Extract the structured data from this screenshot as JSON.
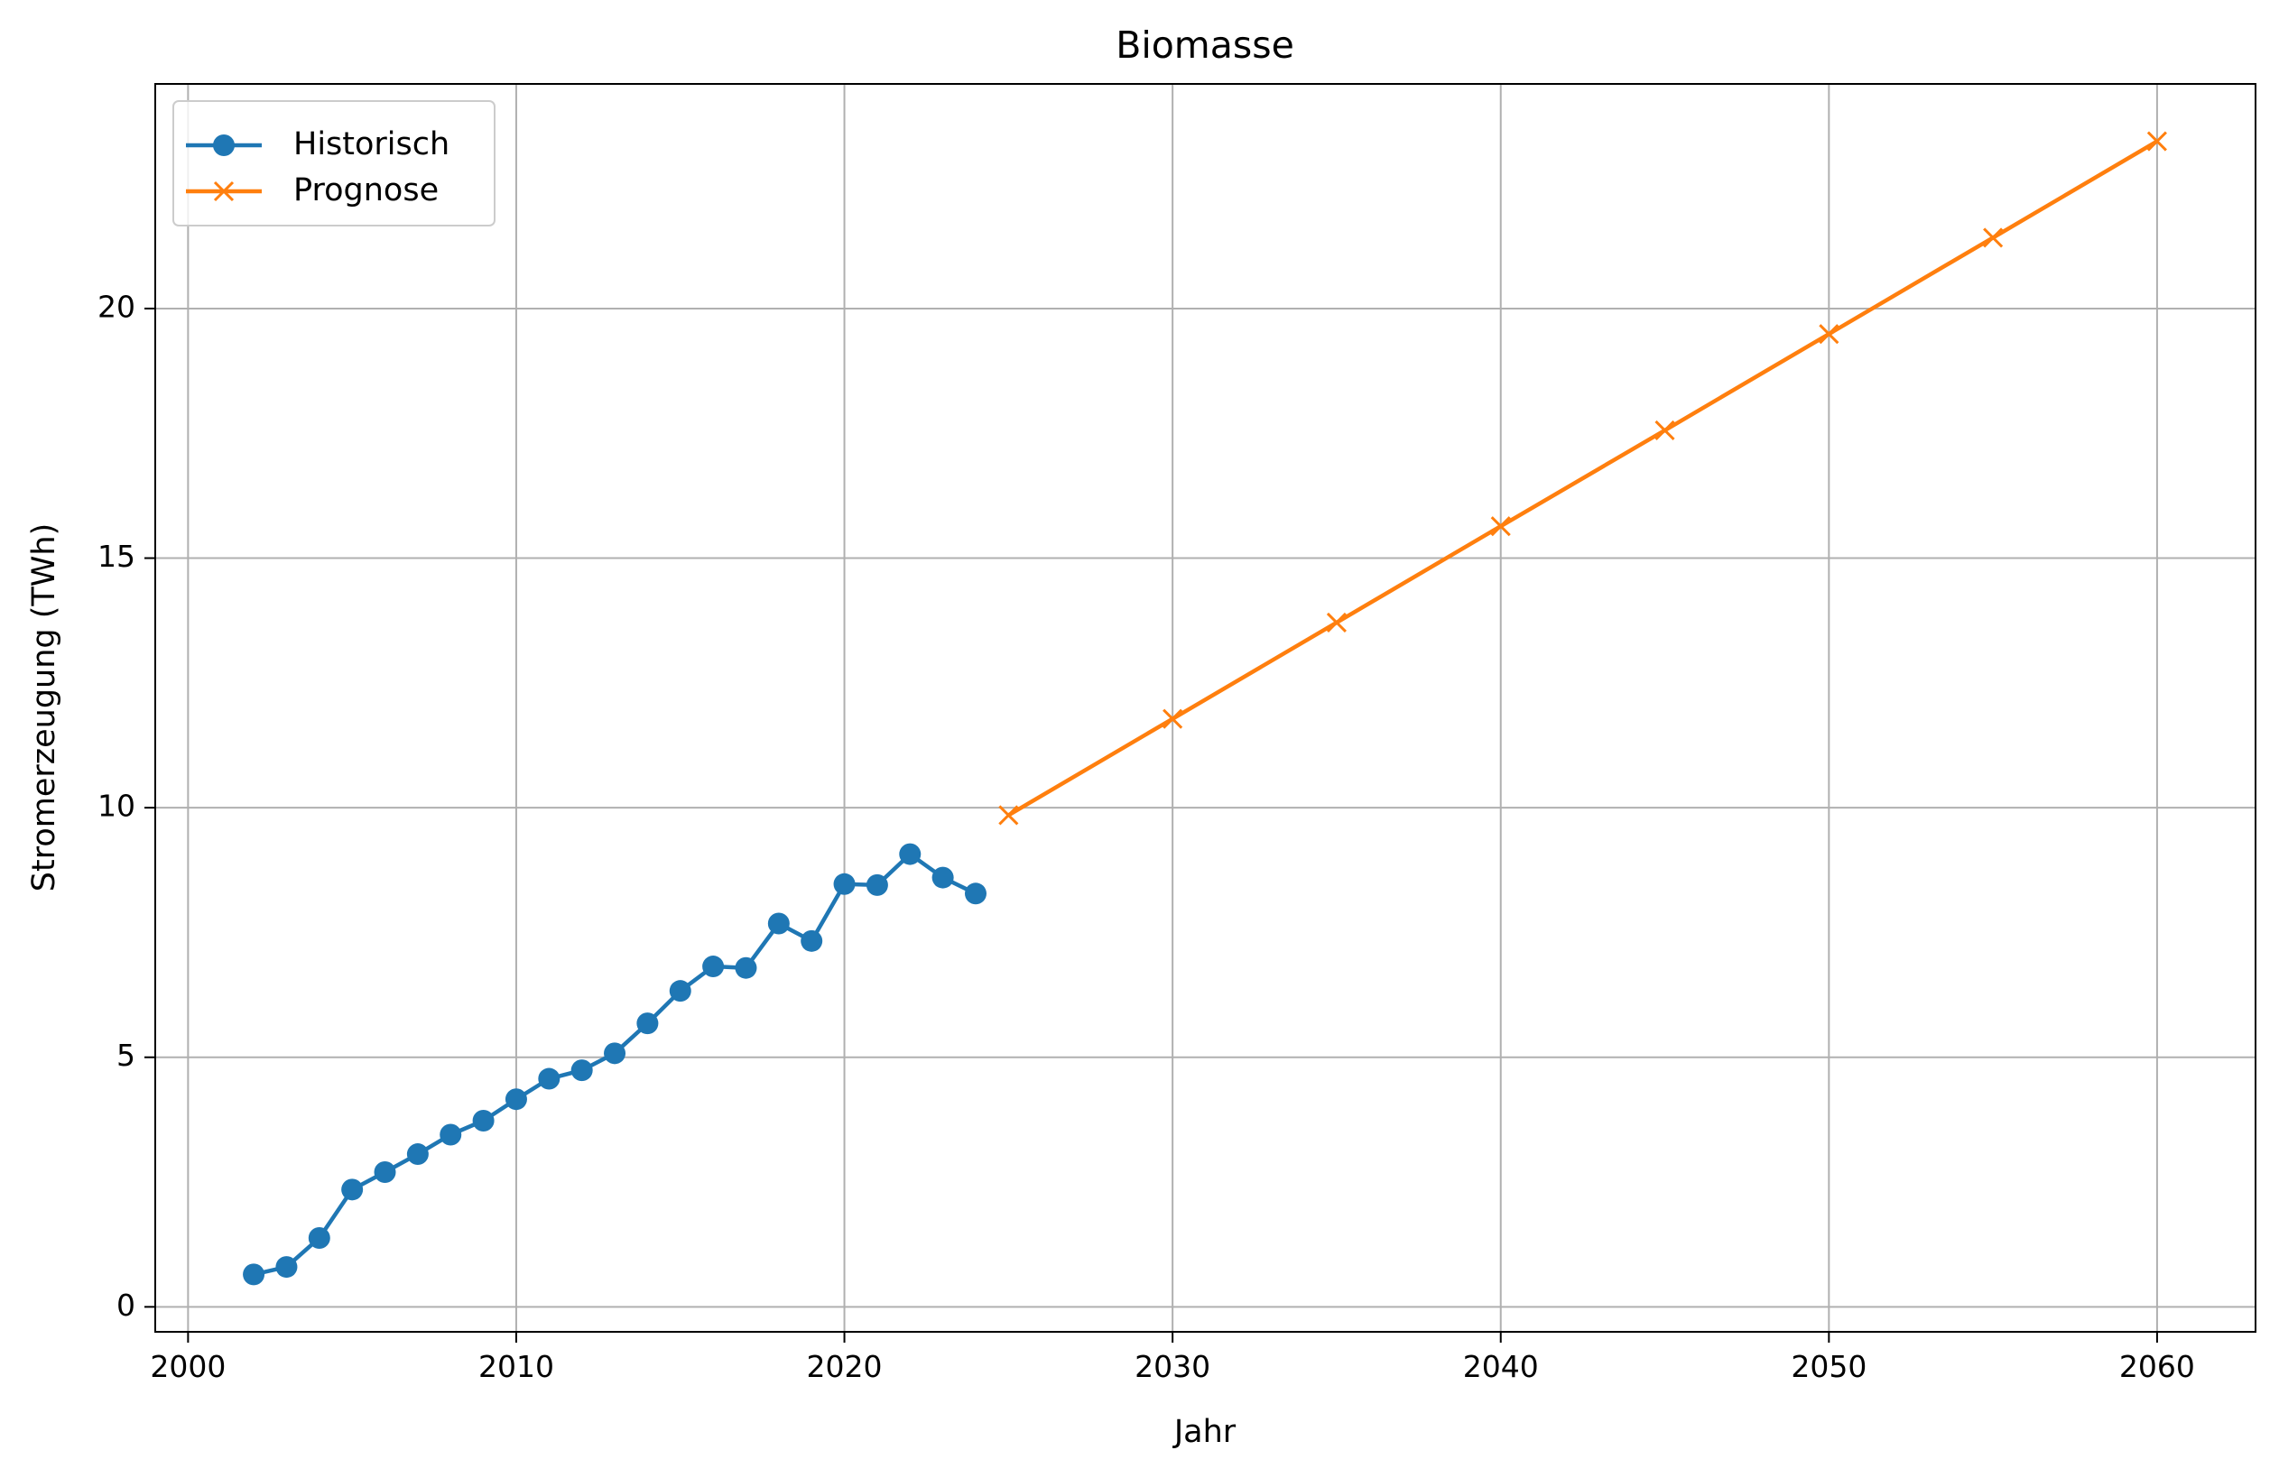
{
  "chart_data": {
    "type": "line",
    "title": "Biomasse",
    "xlabel": "Jahr",
    "ylabel": "Stromerzeugung (TWh)",
    "xlim": [
      1999,
      2063
    ],
    "ylim": [
      -0.5,
      24.5
    ],
    "xticks": [
      2000,
      2010,
      2020,
      2030,
      2040,
      2050,
      2060
    ],
    "yticks": [
      0,
      5,
      10,
      15,
      20
    ],
    "grid": true,
    "legend_position": "top-left",
    "series": [
      {
        "name": "Historisch",
        "color": "#1f77b4",
        "marker": "circle",
        "x": [
          2002,
          2003,
          2004,
          2005,
          2006,
          2007,
          2008,
          2009,
          2010,
          2011,
          2012,
          2013,
          2014,
          2015,
          2016,
          2017,
          2018,
          2019,
          2020,
          2021,
          2022,
          2023,
          2024
        ],
        "y": [
          0.65,
          0.8,
          1.38,
          2.35,
          2.7,
          3.06,
          3.45,
          3.73,
          4.16,
          4.57,
          4.74,
          5.08,
          5.68,
          6.33,
          6.82,
          6.79,
          7.68,
          7.33,
          8.47,
          8.45,
          9.07,
          8.6,
          8.28
        ]
      },
      {
        "name": "Prognose",
        "color": "#ff7f0e",
        "marker": "x",
        "x": [
          2025,
          2030,
          2035,
          2040,
          2045,
          2050,
          2055,
          2060
        ],
        "y": [
          9.85,
          11.78,
          13.71,
          15.64,
          17.56,
          19.49,
          21.42,
          23.35
        ]
      }
    ]
  }
}
